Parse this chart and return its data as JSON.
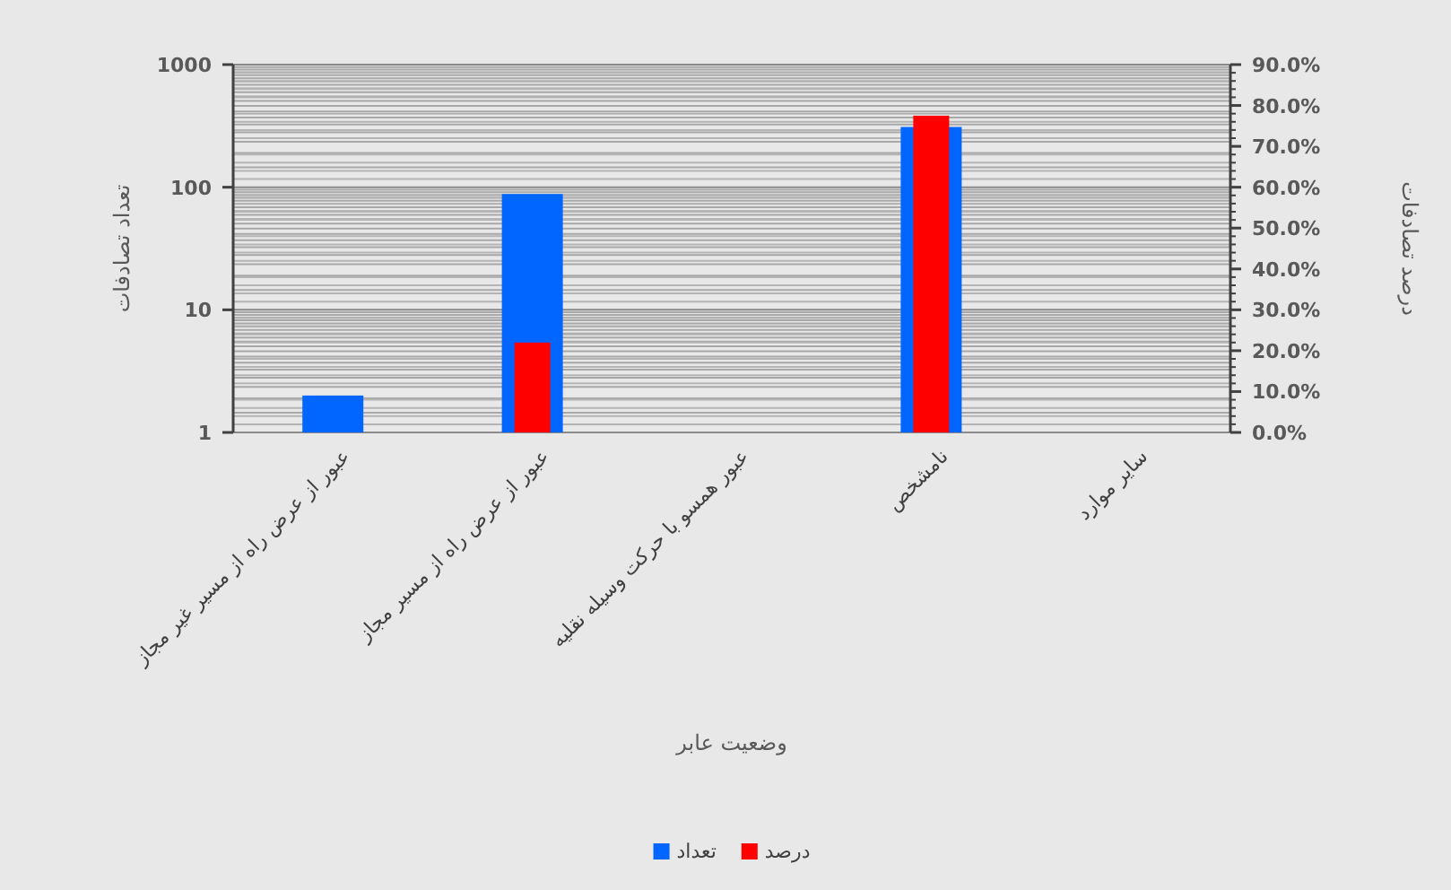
{
  "chart_data": {
    "type": "bar",
    "xlabel": "وضعیت عابر",
    "ylabel": "تعداد تصادفات",
    "y2label": "درصد تصادفات",
    "categories": [
      "عبور از عرض راه از مسیر غیر مجاز",
      "عبور از عرض راه از مسیر مجاز",
      "عبور همسو با حرکت وسیله نقلیه",
      "نامشخص",
      "سایر موارد"
    ],
    "series": [
      {
        "name": "تعداد",
        "color": "#0066ff",
        "values": [
          2,
          88,
          null,
          310,
          null
        ]
      },
      {
        "name": "درصد",
        "color": "#ff0000",
        "axis": "y2",
        "values": [
          null,
          22,
          null,
          77.5,
          null
        ]
      }
    ],
    "log": "y",
    "ylim": [
      1,
      1000
    ],
    "yticks": [
      1,
      10,
      100,
      1000
    ],
    "y2lim": [
      0,
      90
    ],
    "y2ticks": [
      {
        "value": 0,
        "label": "0.0%"
      },
      {
        "value": 10,
        "label": "10.0%"
      },
      {
        "value": 20,
        "label": "20.0%"
      },
      {
        "value": 30,
        "label": "30.0%"
      },
      {
        "value": 40,
        "label": "40.0%"
      },
      {
        "value": 50,
        "label": "50.0%"
      },
      {
        "value": 60,
        "label": "60.0%"
      },
      {
        "value": 70,
        "label": "70.0%"
      },
      {
        "value": 80,
        "label": "80.0%"
      },
      {
        "value": 90,
        "label": "90.0%"
      }
    ],
    "grid": true,
    "legend": "bottom"
  }
}
